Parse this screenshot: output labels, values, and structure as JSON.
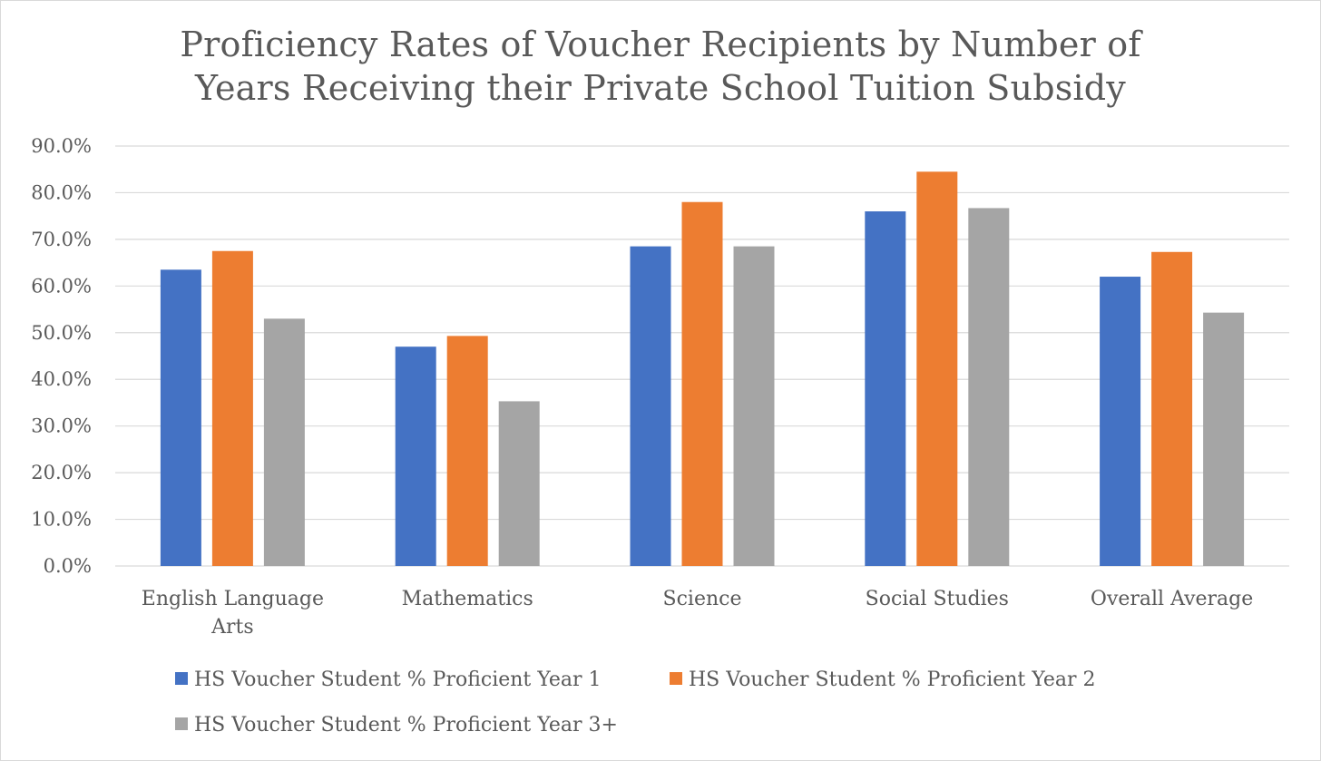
{
  "chart_data": {
    "type": "bar",
    "title_lines": [
      "Proficiency Rates of Voucher Recipients by Number of",
      "Years Receiving their Private School Tuition Subsidy"
    ],
    "xlabel": "",
    "ylabel": "",
    "ylim": [
      0,
      90
    ],
    "yticks": [
      "0.0%",
      "10.0%",
      "20.0%",
      "30.0%",
      "40.0%",
      "50.0%",
      "60.0%",
      "70.0%",
      "80.0%",
      "90.0%"
    ],
    "categories": [
      [
        "English Language",
        "Arts"
      ],
      [
        "Mathematics"
      ],
      [
        "Science"
      ],
      [
        "Social Studies"
      ],
      [
        "Overall Average"
      ]
    ],
    "series": [
      {
        "name": "HS Voucher Student % Proficient  Year 1",
        "color": "#4472c4",
        "values": [
          63.5,
          47.0,
          68.5,
          76.0,
          62.0
        ]
      },
      {
        "name": "HS Voucher Student % Proficient  Year 2",
        "color": "#ed7d31",
        "values": [
          67.5,
          49.3,
          78.0,
          84.5,
          67.3
        ]
      },
      {
        "name": "HS Voucher Student % Proficient  Year 3+",
        "color": "#a5a5a5",
        "values": [
          53.0,
          35.3,
          68.5,
          76.7,
          54.3
        ]
      }
    ],
    "grid": true,
    "legend_position": "bottom"
  }
}
